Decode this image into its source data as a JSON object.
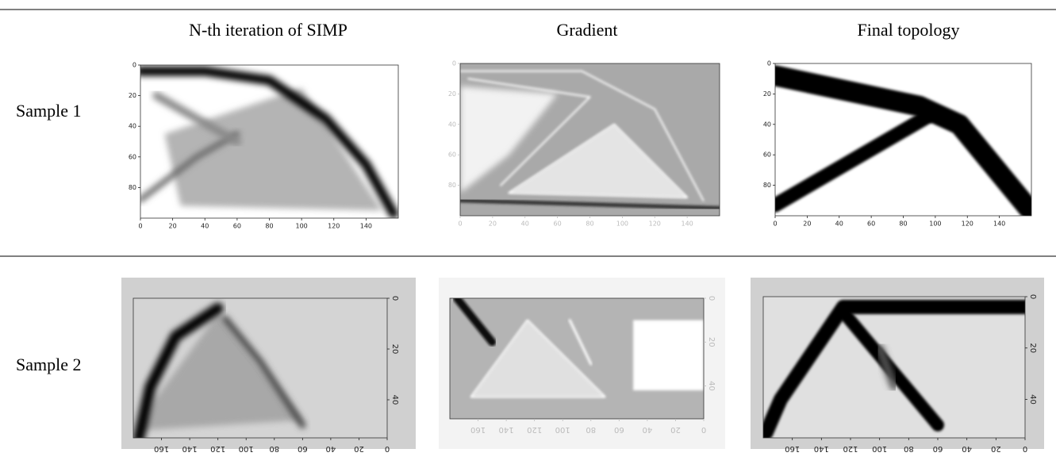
{
  "header": {
    "columns": [
      "N-th iteration of SIMP",
      "Gradient",
      "Final topology"
    ]
  },
  "rows": [
    {
      "label": "Sample 1",
      "panels": [
        {
          "xticks": [
            0,
            20,
            40,
            60,
            80,
            100,
            120,
            140
          ],
          "yticks": [
            0,
            20,
            40,
            60,
            80
          ]
        },
        {
          "xticks": [
            0,
            20,
            40,
            60,
            80,
            100,
            120,
            140
          ],
          "yticks": [
            0,
            20,
            40,
            60,
            80
          ]
        },
        {
          "xticks": [
            0,
            20,
            40,
            60,
            80,
            100,
            120,
            140
          ],
          "yticks": [
            0,
            20,
            40,
            60,
            80
          ]
        }
      ]
    },
    {
      "label": "Sample 2",
      "panels": [
        {
          "xticks": [
            0,
            20,
            40,
            60,
            80,
            100,
            120,
            140,
            160
          ],
          "yticks": [
            0,
            20,
            40
          ]
        },
        {
          "xticks": [
            0,
            20,
            40,
            60,
            80,
            100,
            120,
            140,
            160
          ],
          "yticks": [
            0,
            20,
            40
          ]
        },
        {
          "xticks": [
            0,
            20,
            40,
            60,
            80,
            100,
            120,
            140,
            160
          ],
          "yticks": [
            0,
            20,
            40
          ]
        }
      ]
    }
  ]
}
